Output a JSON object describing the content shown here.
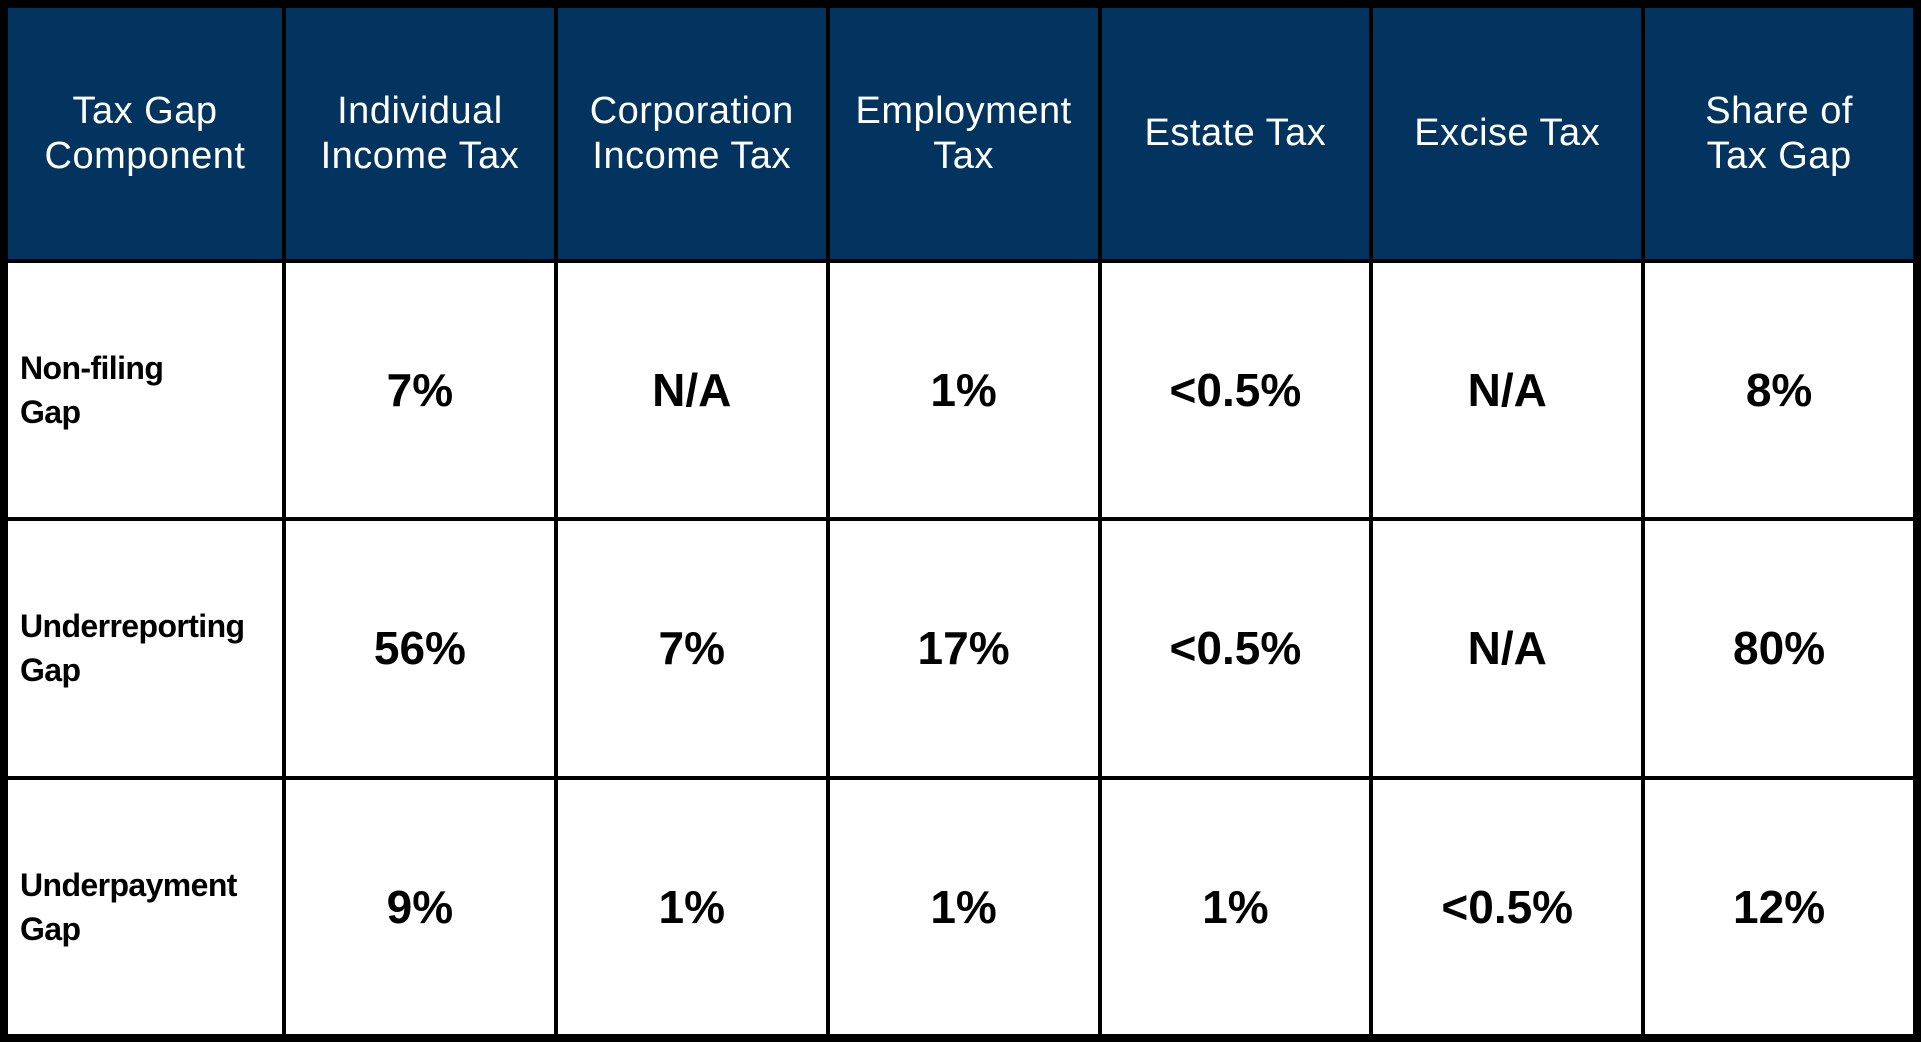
{
  "table": {
    "header": [
      [
        "Tax Gap",
        "Component"
      ],
      [
        "Individual",
        "Income Tax"
      ],
      [
        "Corporation",
        "Income Tax"
      ],
      [
        "Employment",
        "Tax"
      ],
      [
        "Estate Tax"
      ],
      [
        "Excise Tax"
      ],
      [
        "Share of",
        "Tax Gap"
      ]
    ],
    "rows": [
      [
        [
          "Non-filing",
          "Gap"
        ],
        "7%",
        "N/A",
        "1%",
        "<0.5%",
        "N/A",
        "8%"
      ],
      [
        [
          "Underreporting",
          "Gap"
        ],
        "56%",
        "7%",
        "17%",
        "<0.5%",
        "N/A",
        "80%"
      ],
      [
        [
          "Underpayment",
          "Gap"
        ],
        "9%",
        "1%",
        "1%",
        "1%",
        "<0.5%",
        "12%"
      ]
    ]
  }
}
